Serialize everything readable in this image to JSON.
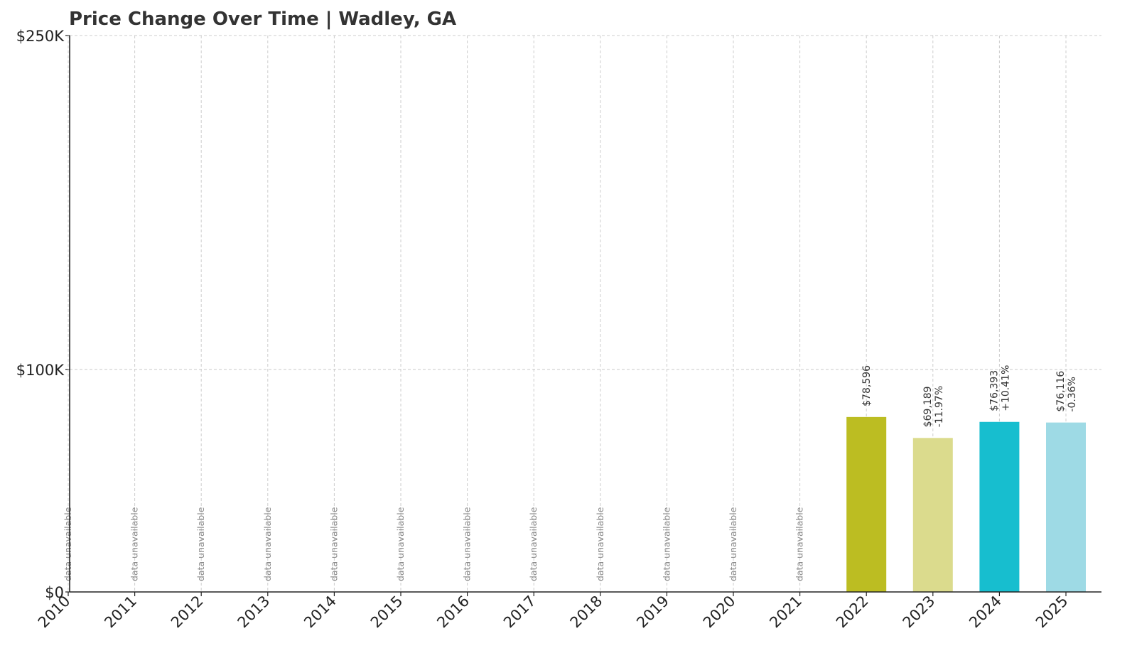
{
  "chart_data": {
    "type": "bar",
    "title": "Price Change Over Time | Wadley, GA",
    "xlabel": "",
    "ylabel": "",
    "categories": [
      "2010",
      "2011",
      "2012",
      "2013",
      "2014",
      "2015",
      "2016",
      "2017",
      "2018",
      "2019",
      "2020",
      "2021",
      "2022",
      "2023",
      "2024",
      "2025"
    ],
    "values": [
      null,
      null,
      null,
      null,
      null,
      null,
      null,
      null,
      null,
      null,
      null,
      null,
      78596,
      69189,
      76393,
      76116
    ],
    "value_labels": [
      null,
      null,
      null,
      null,
      null,
      null,
      null,
      null,
      null,
      null,
      null,
      null,
      "$78,596",
      "$69,189",
      "$76,393",
      "$76,116"
    ],
    "change_labels": [
      null,
      null,
      null,
      null,
      null,
      null,
      null,
      null,
      null,
      null,
      null,
      null,
      null,
      "-11.97%",
      "+10.41%",
      "-0.36%"
    ],
    "missing_label": "data unavailable",
    "bar_colors": {
      "2022": "#bcbd22",
      "2023": "#dbdb8d",
      "2024": "#17becf",
      "2025": "#9edae5"
    },
    "ylim": [
      0,
      250000
    ],
    "yticks": [
      0,
      100000,
      250000
    ],
    "ytick_labels": [
      "$0",
      "$100K",
      "$250K"
    ],
    "grid": true,
    "legend": "none"
  }
}
